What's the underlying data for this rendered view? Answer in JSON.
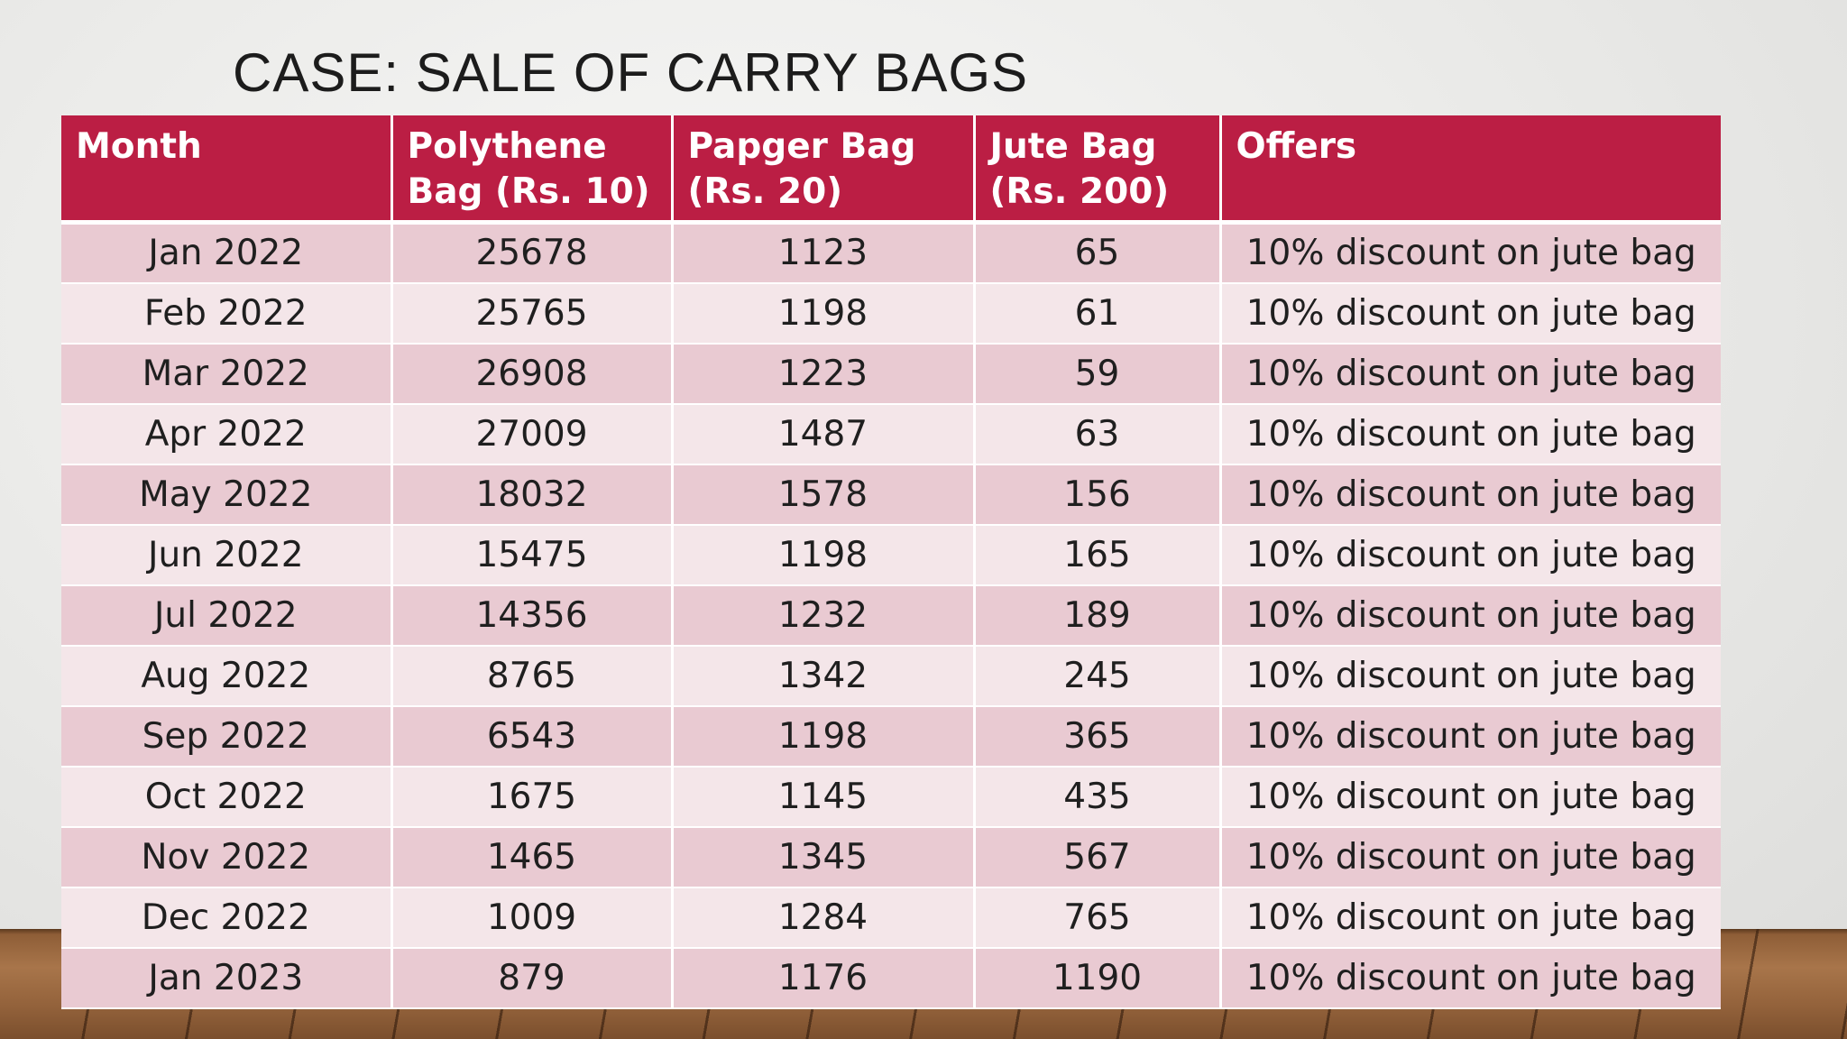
{
  "slide": {
    "title": "CASE: SALE OF CARRY BAGS"
  },
  "colors": {
    "header_bg": "#bb1e44",
    "row_dark": "#e9cad2",
    "row_light": "#f4e6e9"
  },
  "table": {
    "headers": [
      {
        "line1": "Month",
        "line2": ""
      },
      {
        "line1": "Polythene",
        "line2": "Bag (Rs. 10)"
      },
      {
        "line1": "Papger Bag",
        "line2": "(Rs. 20)"
      },
      {
        "line1": "Jute Bag",
        "line2": "(Rs. 200)"
      },
      {
        "line1": "Offers",
        "line2": ""
      }
    ],
    "rows": [
      [
        "Jan 2022",
        "25678",
        "1123",
        "65",
        "10% discount on jute bag"
      ],
      [
        "Feb 2022",
        "25765",
        "1198",
        "61",
        "10% discount on jute bag"
      ],
      [
        "Mar 2022",
        "26908",
        "1223",
        "59",
        "10% discount on jute bag"
      ],
      [
        "Apr 2022",
        "27009",
        "1487",
        "63",
        "10% discount on jute bag"
      ],
      [
        "May 2022",
        "18032",
        "1578",
        "156",
        "10% discount on jute bag"
      ],
      [
        "Jun 2022",
        "15475",
        "1198",
        "165",
        "10% discount on jute bag"
      ],
      [
        "Jul 2022",
        "14356",
        "1232",
        "189",
        "10% discount on jute bag"
      ],
      [
        "Aug 2022",
        "8765",
        "1342",
        "245",
        "10% discount on jute bag"
      ],
      [
        "Sep 2022",
        "6543",
        "1198",
        "365",
        "10% discount on jute bag"
      ],
      [
        "Oct 2022",
        "1675",
        "1145",
        "435",
        "10% discount on jute bag"
      ],
      [
        "Nov 2022",
        "1465",
        "1345",
        "567",
        "10% discount on jute bag"
      ],
      [
        "Dec 2022",
        "1009",
        "1284",
        "765",
        "10% discount on jute bag"
      ],
      [
        "Jan 2023",
        "879",
        "1176",
        "1190",
        "10% discount on jute bag"
      ]
    ]
  }
}
